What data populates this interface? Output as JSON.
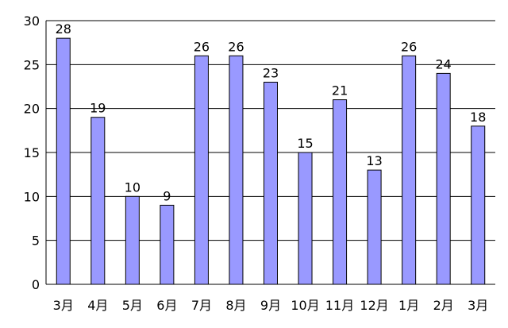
{
  "chart_data": {
    "type": "bar",
    "title": "",
    "xlabel": "",
    "ylabel": "",
    "categories": [
      "3月",
      "4月",
      "5月",
      "6月",
      "7月",
      "8月",
      "9月",
      "10月",
      "11月",
      "12月",
      "1月",
      "2月",
      "3月"
    ],
    "values": [
      28,
      19,
      10,
      9,
      26,
      26,
      23,
      15,
      21,
      13,
      26,
      24,
      18
    ],
    "ylim": [
      0,
      30
    ],
    "yticks": [
      0,
      5,
      10,
      15,
      20,
      25,
      30
    ],
    "grid": true,
    "data_labels": true,
    "bar_color": "#9999ff",
    "grid_color": "#000000"
  }
}
